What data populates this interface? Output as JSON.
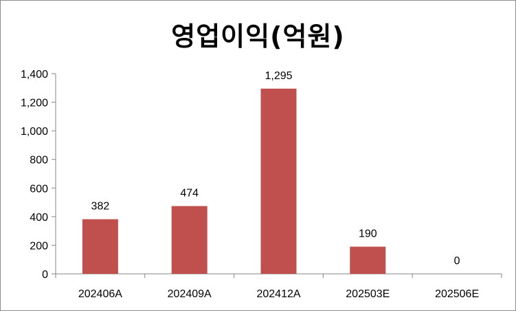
{
  "chart_data": {
    "type": "bar",
    "title": "영업이익(억원)",
    "categories": [
      "202406A",
      "202409A",
      "202412A",
      "202503E",
      "202506E"
    ],
    "values": [
      382,
      474,
      1295,
      190,
      0
    ],
    "value_labels": [
      "382",
      "474",
      "1,295",
      "190",
      "0"
    ],
    "y_ticks": [
      "0",
      "200",
      "400",
      "600",
      "800",
      "1,000",
      "1,200",
      "1,400"
    ],
    "ylim": [
      0,
      1400
    ],
    "xlabel": "",
    "ylabel": "",
    "grid": false,
    "bar_color": "#c0504d"
  }
}
